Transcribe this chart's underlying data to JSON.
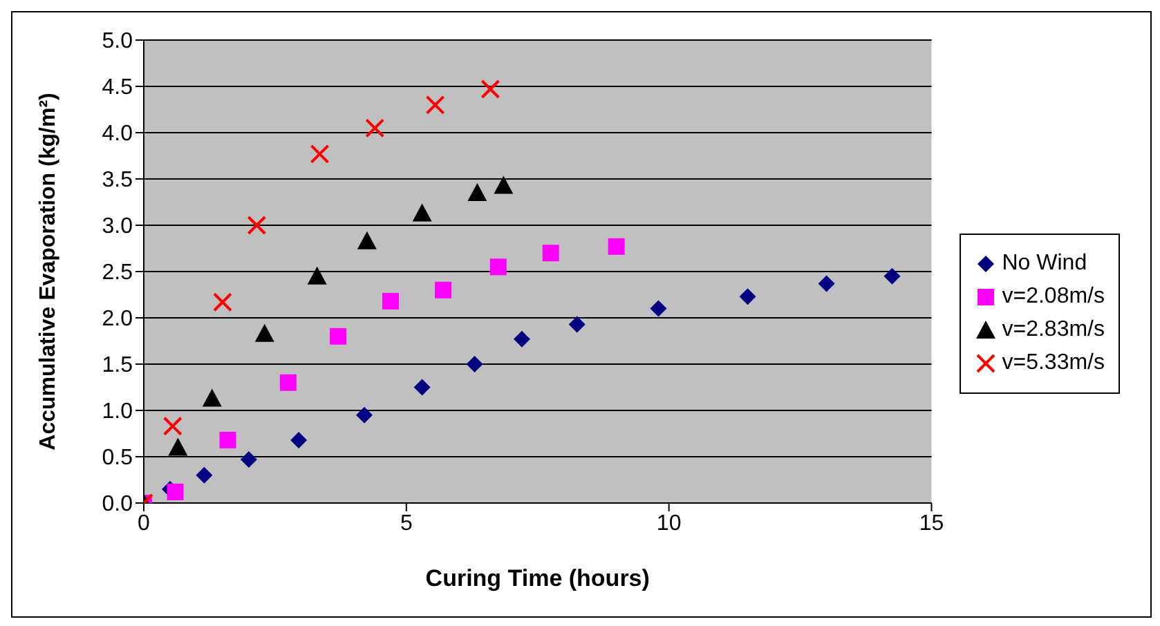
{
  "chart_data": {
    "type": "scatter",
    "xlabel": "Curing Time (hours)",
    "ylabel": "Accumulative Evaporation (kg/m²)",
    "xlim": [
      0,
      15
    ],
    "xticks": [
      0,
      5,
      10,
      15
    ],
    "ylim": [
      0,
      5
    ],
    "yticks": [
      {
        "value": 0,
        "label": "0.0"
      },
      {
        "value": 0.5,
        "label": "0.5"
      },
      {
        "value": 1,
        "label": "1.0"
      },
      {
        "value": 1.5,
        "label": "1.5"
      },
      {
        "value": 2,
        "label": "2.0"
      },
      {
        "value": 2.5,
        "label": "2.5"
      },
      {
        "value": 3,
        "label": "3.0"
      },
      {
        "value": 3.5,
        "label": "3.5"
      },
      {
        "value": 4,
        "label": "4.0"
      },
      {
        "value": 4.5,
        "label": "4.5"
      },
      {
        "value": 5,
        "label": "5.0"
      }
    ],
    "grid": "y",
    "legend": "right",
    "series": [
      {
        "name": "No Wind",
        "color": "#000080",
        "marker": "diamond",
        "x": [
          0.5,
          1.15,
          2.0,
          2.95,
          4.2,
          5.3,
          6.3,
          7.2,
          8.25,
          9.8,
          11.5,
          13.0,
          14.25
        ],
        "values": [
          0.15,
          0.3,
          0.47,
          0.68,
          0.95,
          1.25,
          1.5,
          1.77,
          1.93,
          2.1,
          2.23,
          2.37,
          2.45
        ]
      },
      {
        "name": "v=2.08m/s",
        "color": "#ff00ff",
        "marker": "square",
        "x": [
          0,
          0.6,
          1.6,
          2.75,
          3.7,
          4.7,
          5.7,
          6.75,
          7.75,
          9.0
        ],
        "values": [
          0,
          0.12,
          0.68,
          1.3,
          1.8,
          2.18,
          2.3,
          2.55,
          2.7,
          2.77
        ]
      },
      {
        "name": "v=2.83m/s",
        "color": "#000000",
        "marker": "triangle",
        "x": [
          0,
          0.65,
          1.3,
          2.3,
          3.3,
          4.25,
          5.3,
          6.35,
          6.85
        ],
        "values": [
          0,
          0.6,
          1.13,
          1.83,
          2.45,
          2.83,
          3.13,
          3.35,
          3.43
        ]
      },
      {
        "name": "v=5.33m/s",
        "color": "#ff0000",
        "marker": "cross",
        "x": [
          0,
          0.55,
          1.5,
          2.15,
          3.35,
          4.4,
          5.55,
          6.6
        ],
        "values": [
          0,
          0.83,
          2.17,
          3.0,
          3.77,
          4.05,
          4.3,
          4.47
        ]
      }
    ]
  }
}
